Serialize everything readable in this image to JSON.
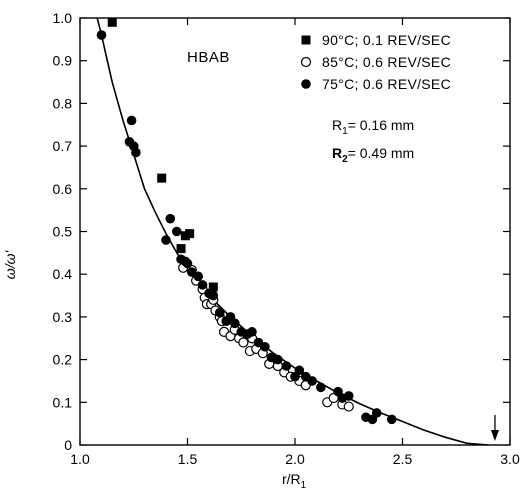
{
  "chart_data": {
    "type": "scatter",
    "title": "HBAB",
    "xlabel": "r/R",
    "xlabel_sub": "1",
    "ylabel": "ω/ω'",
    "xlim": [
      1.0,
      3.0
    ],
    "ylim": [
      0,
      1.0
    ],
    "x_ticks": [
      "1.0",
      "1.5",
      "2.0",
      "2.5",
      "3.0"
    ],
    "y_ticks": [
      "0",
      "0.1",
      "0.2",
      "0.3",
      "0.4",
      "0.5",
      "0.6",
      "0.7",
      "0.8",
      "0.9",
      "1.0"
    ],
    "grid": false,
    "legend_position": "top-right",
    "annotations": [
      {
        "prefix": "R",
        "sub": "1",
        "text": "= 0.16  mm"
      },
      {
        "prefix": "R",
        "sub": "2",
        "text": "= 0.49  mm"
      }
    ],
    "series": [
      {
        "name": "90°C; 0.1 REV/SEC",
        "marker": "filled-square",
        "points": [
          [
            1.15,
            0.99
          ],
          [
            1.38,
            0.625
          ],
          [
            1.49,
            0.49
          ],
          [
            1.51,
            0.495
          ],
          [
            1.47,
            0.46
          ],
          [
            1.62,
            0.37
          ]
        ]
      },
      {
        "name": "85°C; 0.6 REV/SEC",
        "marker": "open-circle",
        "points": [
          [
            1.48,
            0.415
          ],
          [
            1.52,
            0.41
          ],
          [
            1.54,
            0.385
          ],
          [
            1.57,
            0.365
          ],
          [
            1.58,
            0.345
          ],
          [
            1.59,
            0.33
          ],
          [
            1.61,
            0.33
          ],
          [
            1.62,
            0.34
          ],
          [
            1.63,
            0.315
          ],
          [
            1.65,
            0.3
          ],
          [
            1.66,
            0.29
          ],
          [
            1.67,
            0.265
          ],
          [
            1.7,
            0.255
          ],
          [
            1.72,
            0.27
          ],
          [
            1.74,
            0.25
          ],
          [
            1.76,
            0.24
          ],
          [
            1.79,
            0.22
          ],
          [
            1.8,
            0.25
          ],
          [
            1.82,
            0.225
          ],
          [
            1.85,
            0.215
          ],
          [
            1.88,
            0.19
          ],
          [
            1.92,
            0.185
          ],
          [
            1.95,
            0.17
          ],
          [
            1.98,
            0.16
          ],
          [
            2.02,
            0.15
          ],
          [
            2.05,
            0.14
          ],
          [
            2.15,
            0.1
          ],
          [
            2.18,
            0.11
          ],
          [
            2.22,
            0.095
          ],
          [
            2.25,
            0.09
          ]
        ]
      },
      {
        "name": "75°C; 0.6 REV/SEC",
        "marker": "filled-circle",
        "points": [
          [
            1.1,
            0.96
          ],
          [
            1.23,
            0.71
          ],
          [
            1.24,
            0.76
          ],
          [
            1.25,
            0.7
          ],
          [
            1.26,
            0.685
          ],
          [
            1.4,
            0.48
          ],
          [
            1.42,
            0.53
          ],
          [
            1.45,
            0.5
          ],
          [
            1.47,
            0.435
          ],
          [
            1.49,
            0.43
          ],
          [
            1.5,
            0.425
          ],
          [
            1.52,
            0.405
          ],
          [
            1.55,
            0.395
          ],
          [
            1.57,
            0.375
          ],
          [
            1.6,
            0.355
          ],
          [
            1.62,
            0.35
          ],
          [
            1.65,
            0.31
          ],
          [
            1.68,
            0.29
          ],
          [
            1.7,
            0.3
          ],
          [
            1.72,
            0.285
          ],
          [
            1.75,
            0.265
          ],
          [
            1.78,
            0.26
          ],
          [
            1.8,
            0.265
          ],
          [
            1.83,
            0.24
          ],
          [
            1.86,
            0.23
          ],
          [
            1.89,
            0.205
          ],
          [
            1.92,
            0.2
          ],
          [
            1.96,
            0.185
          ],
          [
            2.0,
            0.16
          ],
          [
            2.02,
            0.175
          ],
          [
            2.05,
            0.16
          ],
          [
            2.08,
            0.15
          ],
          [
            2.12,
            0.135
          ],
          [
            2.2,
            0.125
          ],
          [
            2.22,
            0.11
          ],
          [
            2.25,
            0.115
          ],
          [
            2.33,
            0.065
          ],
          [
            2.36,
            0.06
          ],
          [
            2.38,
            0.075
          ],
          [
            2.45,
            0.06
          ]
        ]
      }
    ],
    "fit_curve": {
      "x": [
        1.08,
        1.1,
        1.15,
        1.2,
        1.25,
        1.3,
        1.35,
        1.4,
        1.45,
        1.5,
        1.55,
        1.6,
        1.7,
        1.8,
        1.9,
        2.0,
        2.1,
        2.2,
        2.3,
        2.4,
        2.5,
        2.6,
        2.7,
        2.8,
        2.9
      ],
      "y": [
        1.02,
        0.96,
        0.85,
        0.76,
        0.68,
        0.6,
        0.545,
        0.495,
        0.45,
        0.41,
        0.38,
        0.35,
        0.3,
        0.255,
        0.215,
        0.18,
        0.15,
        0.122,
        0.097,
        0.075,
        0.055,
        0.035,
        0.018,
        0.004,
        -0.01
      ]
    },
    "marker_arrow_x": 2.93
  }
}
